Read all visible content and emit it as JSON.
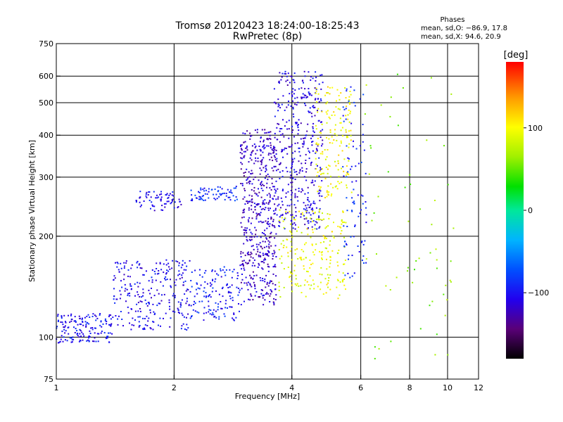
{
  "chart_data": {
    "type": "scatter",
    "title": "Tromsø 20120423 18:24:00-18:25:43",
    "subtitle": "RwPretec (8p)",
    "xlabel": "Frequency [MHz]",
    "ylabel": "Stationary phase Virtual Height [km]",
    "x_scale": "log",
    "y_scale": "log",
    "xlim": [
      1,
      12
    ],
    "ylim": [
      75,
      750
    ],
    "x_ticks": [
      1,
      2,
      4,
      6,
      8,
      10,
      12
    ],
    "y_ticks": [
      75,
      100,
      200,
      300,
      400,
      500,
      600,
      750
    ],
    "x_grid": [
      2,
      4,
      6,
      8,
      10
    ],
    "y_grid": [
      100,
      200,
      300,
      400,
      500,
      600
    ],
    "grid": true,
    "phases": {
      "title": "Phases",
      "o_mode": "mean, sd,O: −86.9, 17.8",
      "x_mode": "mean, sd,X:  94.6, 20.9"
    },
    "colorbar": {
      "label": "[deg]",
      "range": [
        -180,
        180
      ],
      "ticks": [
        {
          "value": 100,
          "label": "100"
        },
        {
          "value": 0,
          "label": "0"
        },
        {
          "value": -100,
          "label": "−100"
        }
      ]
    },
    "point_clusters": [
      {
        "freq": [
          1.0,
          1.4
        ],
        "height": [
          96,
          118
        ],
        "phase": -100,
        "count": 160
      },
      {
        "freq": [
          1.4,
          2.2
        ],
        "height": [
          105,
          170
        ],
        "phase": -105,
        "count": 260
      },
      {
        "freq": [
          2.2,
          2.95
        ],
        "height": [
          112,
          162
        ],
        "phase": -95,
        "count": 140
      },
      {
        "freq": [
          1.6,
          2.1
        ],
        "height": [
          238,
          272
        ],
        "phase": -105,
        "count": 70
      },
      {
        "freq": [
          2.2,
          2.9
        ],
        "height": [
          255,
          282
        ],
        "phase": -90,
        "count": 70
      },
      {
        "freq": [
          2.95,
          3.65
        ],
        "height": [
          125,
          420
        ],
        "phase": -120,
        "count": 520
      },
      {
        "freq": [
          3.6,
          4.8
        ],
        "height": [
          210,
          620
        ],
        "phase": -110,
        "count": 420
      },
      {
        "freq": [
          3.7,
          5.5
        ],
        "height": [
          130,
          240
        ],
        "phase": 95,
        "count": 220
      },
      {
        "freq": [
          4.6,
          5.7
        ],
        "height": [
          260,
          560
        ],
        "phase": 100,
        "count": 160
      },
      {
        "freq": [
          5.4,
          6.2
        ],
        "height": [
          150,
          560
        ],
        "phase": -90,
        "count": 90
      },
      {
        "freq": [
          6.0,
          10.5
        ],
        "height": [
          80,
          620
        ],
        "phase": 60,
        "count": 60
      }
    ]
  }
}
